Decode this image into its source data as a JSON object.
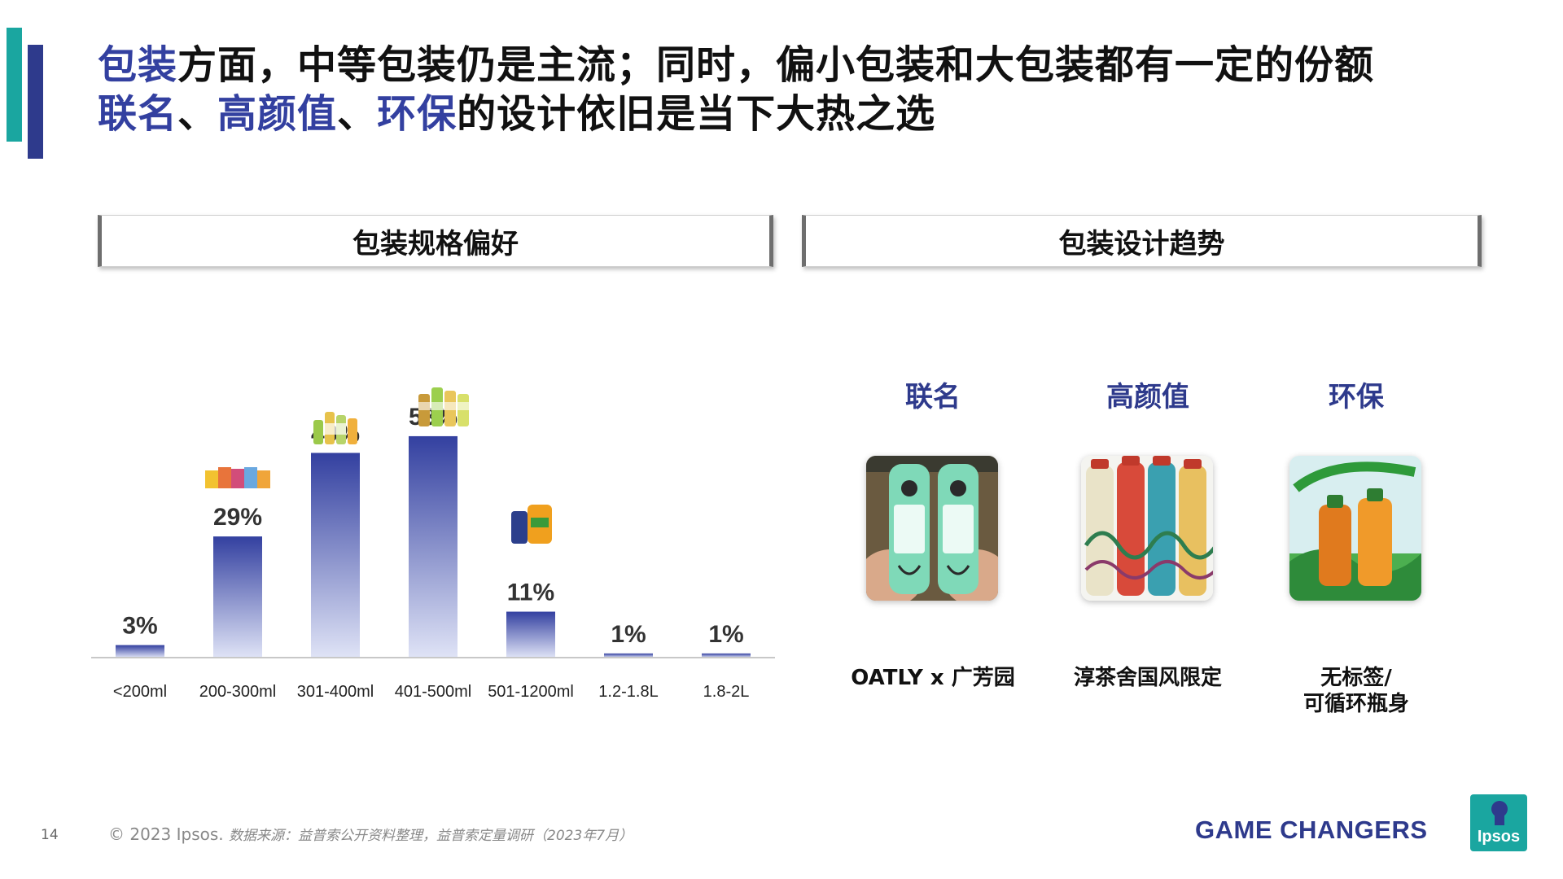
{
  "headline": {
    "line1": [
      {
        "text": "包装",
        "hl": true
      },
      {
        "text": "方面，中等包装仍是主流；同时，偏小包装和大包装都有一定的份额",
        "hl": false
      }
    ],
    "line2": [
      {
        "text": "联名",
        "hl": true
      },
      {
        "text": "、",
        "hl": false
      },
      {
        "text": "高颜值",
        "hl": true
      },
      {
        "text": "、",
        "hl": false
      },
      {
        "text": "环保",
        "hl": true
      },
      {
        "text": "的设计依旧是当下大热之选",
        "hl": false
      }
    ]
  },
  "section_left_title": "包装规格偏好",
  "section_right_title": "包装设计趋势",
  "chart_data": {
    "type": "bar",
    "categories": [
      "<200ml",
      "200-300ml",
      "301-400ml",
      "401-500ml",
      "501-1200ml",
      "1.2-1.8L",
      "1.8-2L"
    ],
    "values": [
      3,
      29,
      49,
      53,
      11,
      1,
      1
    ],
    "value_labels": [
      "3%",
      "29%",
      "49%",
      "53%",
      "11%",
      "1%",
      "1%"
    ],
    "ylim": [
      0,
      60
    ],
    "title": "",
    "xlabel": "",
    "ylabel": "",
    "legend": "none",
    "grid": false,
    "bar_color_top": "#3340a0",
    "bar_color_bottom": "#dfe3f6"
  },
  "design_trends": [
    {
      "label": "联名",
      "caption": "OATLY x 广芳园",
      "caption2": ""
    },
    {
      "label": "高颜值",
      "caption": "淳茶舍国风限定",
      "caption2": ""
    },
    {
      "label": "环保",
      "caption": "无标签/",
      "caption2": "可循环瓶身"
    }
  ],
  "colors": {
    "accent_navy": "#2e3a8c",
    "accent_teal": "#1aa6a0",
    "highlight_text": "#3340a0"
  },
  "footer": {
    "page_number": "14",
    "copyright": "© 2023 Ipsos.",
    "source": "数据来源：益普索公开资料整理，益普索定量调研（2023年7月）",
    "brand": "GAME CHANGERS",
    "logo_text": "Ipsos"
  }
}
